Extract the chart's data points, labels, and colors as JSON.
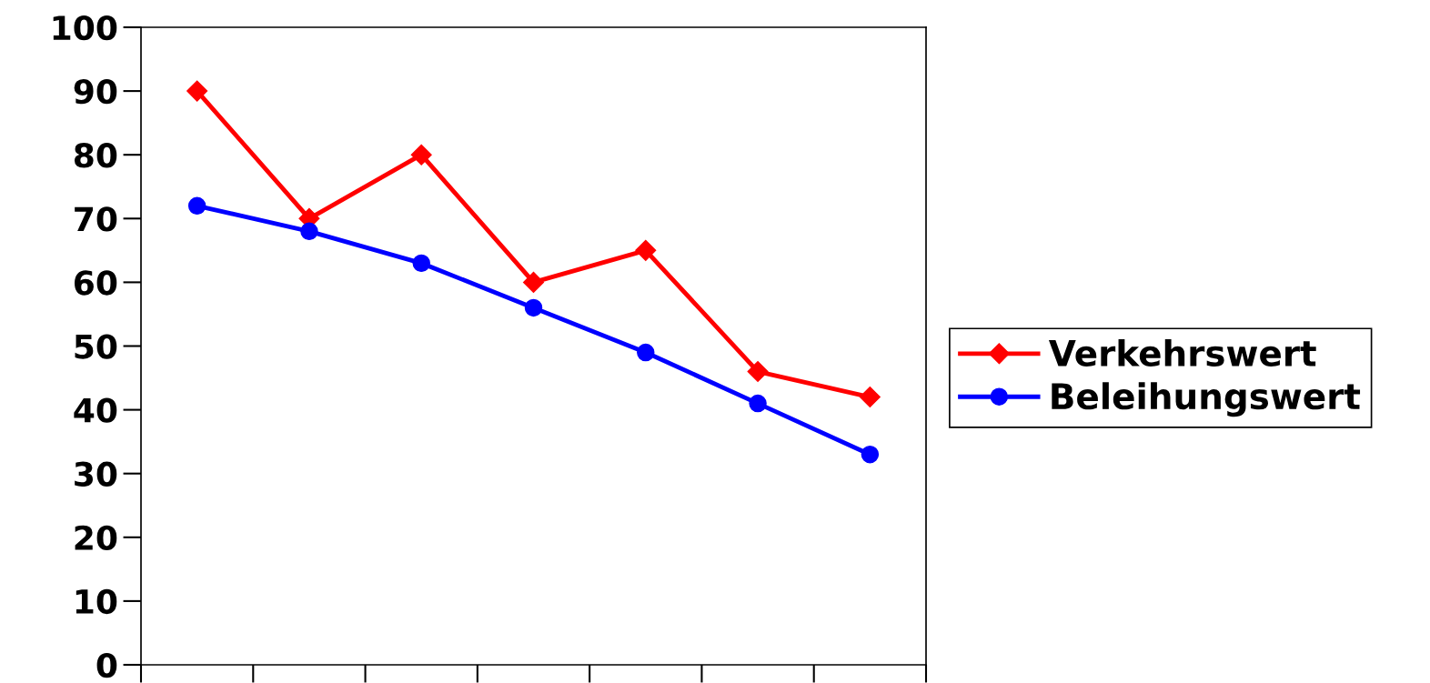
{
  "chart_data": {
    "type": "line",
    "categories": [
      null,
      null,
      null,
      null,
      null,
      null,
      null
    ],
    "series": [
      {
        "name": "Verkehrswert",
        "color": "#ff0000",
        "marker": "diamond",
        "values": [
          90,
          70,
          80,
          60,
          65,
          46,
          42
        ]
      },
      {
        "name": "Beleihungswert",
        "color": "#0000ff",
        "marker": "circle",
        "values": [
          72,
          68,
          63,
          56,
          49,
          41,
          33
        ]
      }
    ],
    "ylim": [
      0,
      100
    ],
    "yticks": [
      0,
      10,
      20,
      30,
      40,
      50,
      60,
      70,
      80,
      90,
      100
    ],
    "grid": false,
    "legend": "right"
  }
}
